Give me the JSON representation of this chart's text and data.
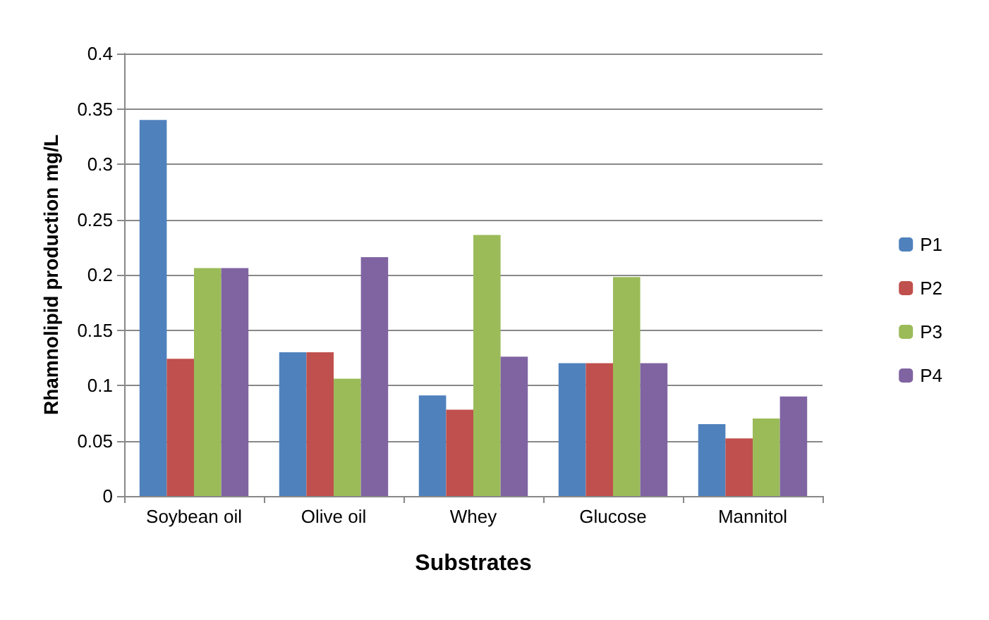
{
  "chart_data": {
    "type": "bar",
    "xlabel": "Substrates",
    "ylabel": "Rhamnolipid production mg/L",
    "categories": [
      "Soybean oil",
      "Olive oil",
      "Whey",
      "Glucose",
      "Mannitol"
    ],
    "series": [
      {
        "name": "P1",
        "color": "#4f81bd",
        "values": [
          0.34,
          0.13,
          0.091,
          0.12,
          0.065
        ]
      },
      {
        "name": "P2",
        "color": "#c0504d",
        "values": [
          0.124,
          0.13,
          0.078,
          0.12,
          0.052
        ]
      },
      {
        "name": "P3",
        "color": "#9bbb59",
        "values": [
          0.206,
          0.106,
          0.236,
          0.198,
          0.07
        ]
      },
      {
        "name": "P4",
        "color": "#8064a2",
        "values": [
          0.206,
          0.216,
          0.126,
          0.12,
          0.09
        ]
      }
    ],
    "ylim": [
      0,
      0.4
    ],
    "yticks": [
      0,
      0.05,
      0.1,
      0.15,
      0.2,
      0.25,
      0.3,
      0.35,
      0.4
    ],
    "grid": "y",
    "legend": "right"
  }
}
